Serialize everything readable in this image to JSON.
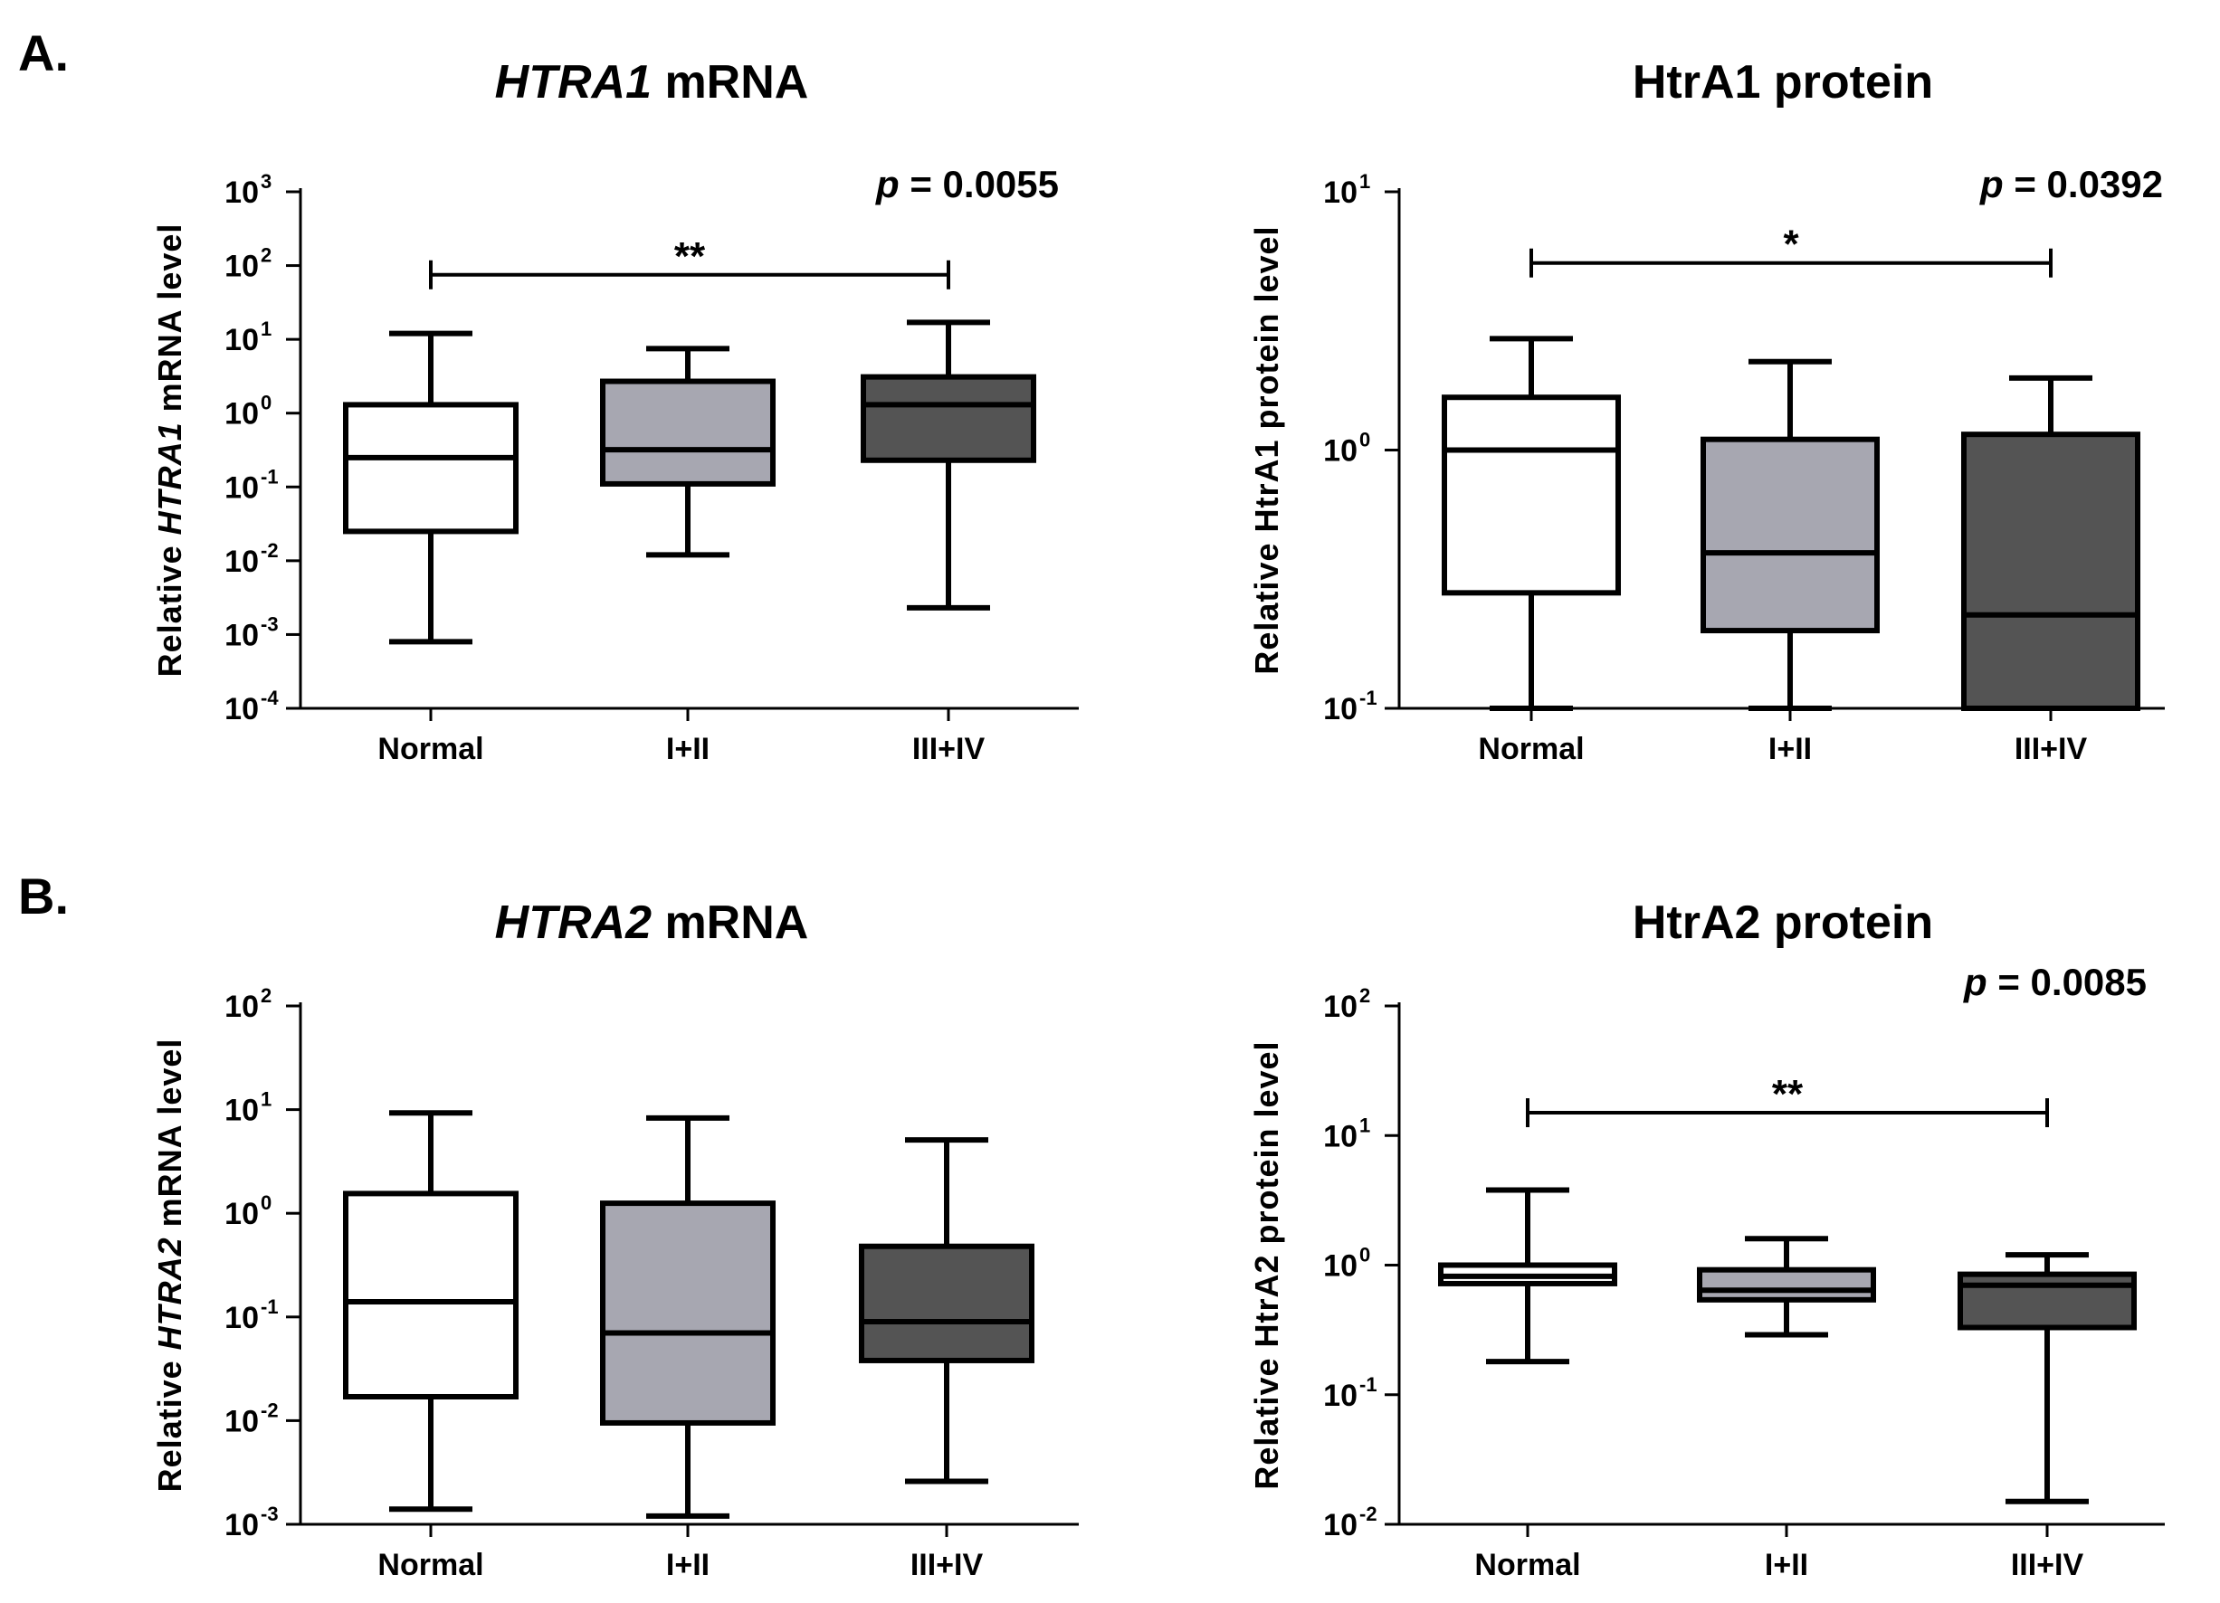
{
  "figure": {
    "panel_labels": [
      "A.",
      "B."
    ]
  },
  "colors": {
    "normal_fill": "#ffffff",
    "early_fill": "#a7a7b1",
    "late_fill": "#545454",
    "stroke": "#000000"
  },
  "chart_data": [
    {
      "type": "boxplot",
      "title_italic": "HTRA1",
      "title_rest": " mRNA",
      "ylabel_pre": "Relative ",
      "ylabel_italic": "HTRA1",
      "ylabel_post": " mRNA level",
      "yscale": "log",
      "yexp_range": [
        -4,
        3
      ],
      "categories": [
        "Normal",
        "I+II",
        "III+IV"
      ],
      "boxes": [
        {
          "min": 0.0008,
          "q1": 0.025,
          "median": 0.25,
          "q3": 1.3,
          "max": 12
        },
        {
          "min": 0.012,
          "q1": 0.11,
          "median": 0.32,
          "q3": 2.7,
          "max": 7.5
        },
        {
          "min": 0.0023,
          "q1": 0.23,
          "median": 1.3,
          "q3": 3.1,
          "max": 17
        }
      ],
      "significance": {
        "from": 0,
        "to": 2,
        "y": 75,
        "stars": "**"
      },
      "pvalue_label": "p",
      "pvalue_text": " = 0.0055"
    },
    {
      "type": "boxplot",
      "title_italic": "",
      "title_rest": "HtrA1 protein",
      "ylabel_pre": "Relative HtrA1 protein level",
      "ylabel_italic": "",
      "ylabel_post": "",
      "yscale": "log",
      "yexp_range": [
        -1,
        1
      ],
      "categories": [
        "Normal",
        "I+II",
        "III+IV"
      ],
      "boxes": [
        {
          "min": 0.1,
          "q1": 0.28,
          "median": 1.0,
          "q3": 1.6,
          "max": 2.7
        },
        {
          "min": 0.1,
          "q1": 0.2,
          "median": 0.4,
          "q3": 1.1,
          "max": 2.2
        },
        {
          "min": 0.1,
          "q1": 0.1,
          "median": 0.23,
          "q3": 1.15,
          "max": 1.9
        }
      ],
      "significance": {
        "from": 0,
        "to": 2,
        "y": 5.3,
        "stars": "*"
      },
      "pvalue_label": "p",
      "pvalue_text": " = 0.0392"
    },
    {
      "type": "boxplot",
      "title_italic": "HTRA2",
      "title_rest": " mRNA",
      "ylabel_pre": "Relative ",
      "ylabel_italic": "HTRA2",
      "ylabel_post": " mRNA level",
      "yscale": "log",
      "yexp_range": [
        -3,
        2
      ],
      "categories": [
        "Normal",
        "I+II",
        "III+IV"
      ],
      "boxes": [
        {
          "min": 0.0014,
          "q1": 0.017,
          "median": 0.14,
          "q3": 1.55,
          "max": 9.3
        },
        {
          "min": 0.0012,
          "q1": 0.0095,
          "median": 0.07,
          "q3": 1.25,
          "max": 8.3
        },
        {
          "min": 0.0026,
          "q1": 0.038,
          "median": 0.09,
          "q3": 0.48,
          "max": 5.1
        }
      ],
      "significance": null,
      "pvalue_label": "",
      "pvalue_text": ""
    },
    {
      "type": "boxplot",
      "title_italic": "",
      "title_rest": "HtrA2 protein",
      "ylabel_pre": "Relative HtrA2 protein level",
      "ylabel_italic": "",
      "ylabel_post": "",
      "yscale": "log",
      "yexp_range": [
        -2,
        2
      ],
      "categories": [
        "Normal",
        "I+II",
        "III+IV"
      ],
      "boxes": [
        {
          "min": 0.18,
          "q1": 0.72,
          "median": 0.82,
          "q3": 1.0,
          "max": 3.8
        },
        {
          "min": 0.29,
          "q1": 0.54,
          "median": 0.64,
          "q3": 0.92,
          "max": 1.6
        },
        {
          "min": 0.015,
          "q1": 0.33,
          "median": 0.7,
          "q3": 0.85,
          "max": 1.2
        }
      ],
      "significance": {
        "from": 0,
        "to": 2,
        "y": 15,
        "stars": "**"
      },
      "pvalue_label": "p",
      "pvalue_text": " = 0.0085"
    }
  ]
}
